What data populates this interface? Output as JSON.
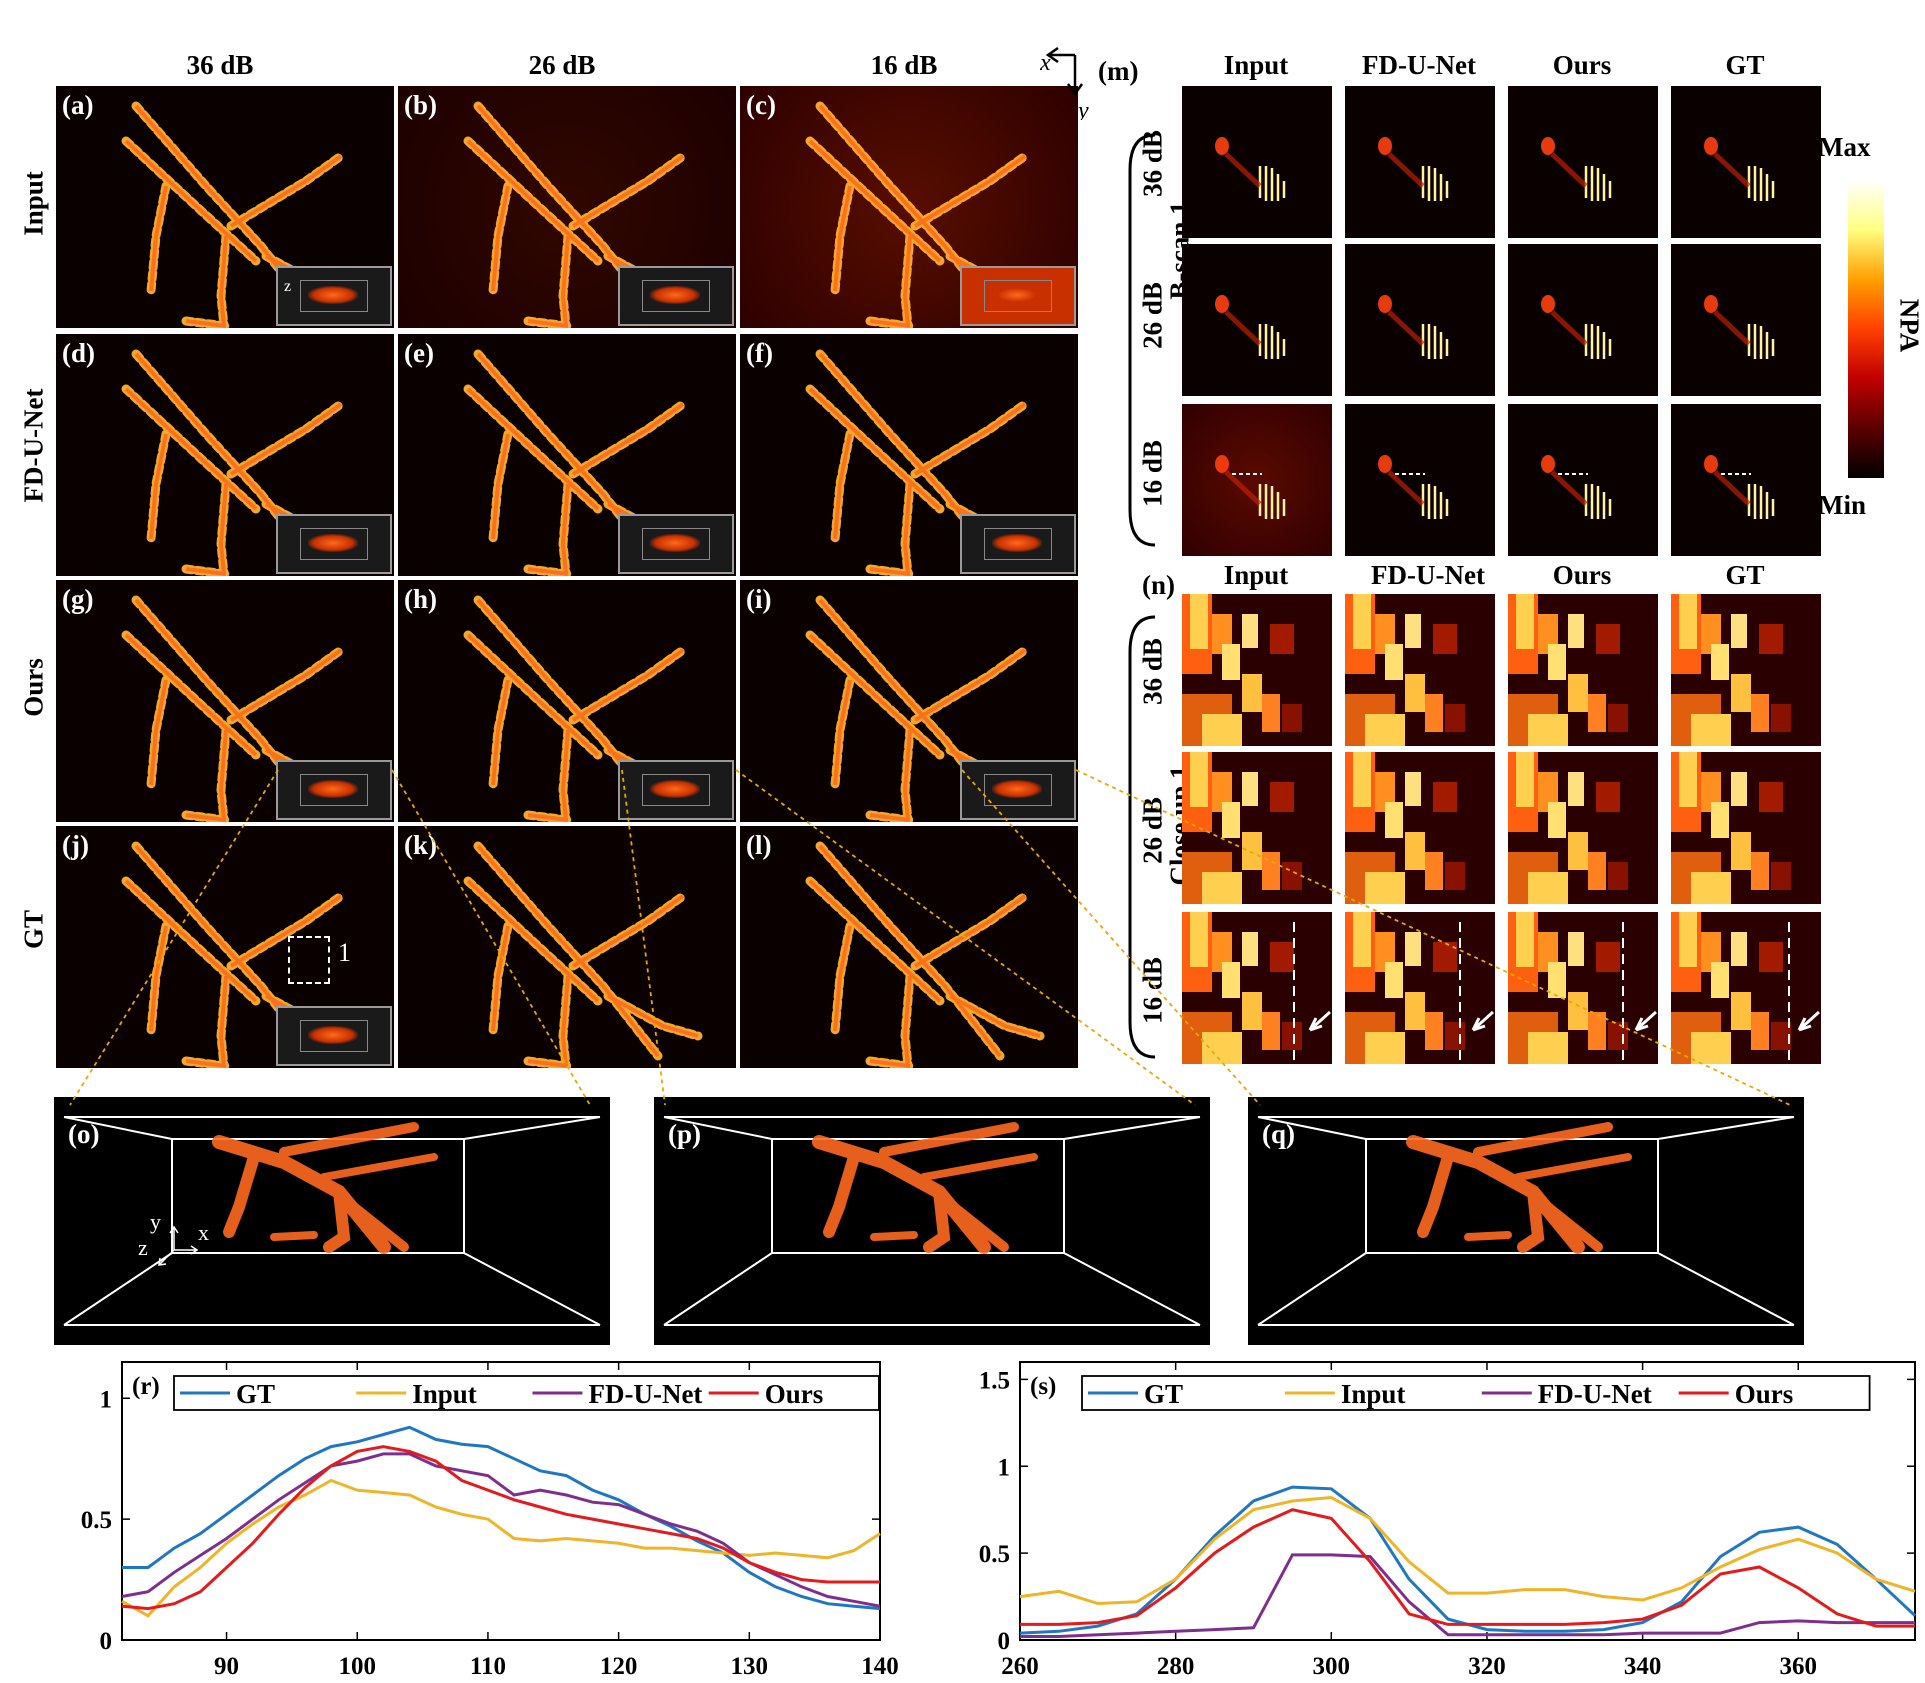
{
  "column_headers": [
    "36 dB",
    "26 dB",
    "16 dB"
  ],
  "row_headers": [
    "Input",
    "FD-U-Net",
    "Ours",
    "GT"
  ],
  "panel_tags": [
    "(a)",
    "(b)",
    "(c)",
    "(d)",
    "(e)",
    "(f)",
    "(g)",
    "(h)",
    "(i)",
    "(j)",
    "(k)",
    "(l)"
  ],
  "inset_axis_label": "z",
  "closeup_marker": "1",
  "axes_indicator": {
    "x": "x",
    "y": "y"
  },
  "bscan": {
    "tag": "(m)",
    "column_headers": [
      "Input",
      "FD-U-Net",
      "Ours",
      "GT"
    ],
    "row_headers": [
      "36 dB",
      "26 dB",
      "16 dB"
    ],
    "group_label": "B-scan 1"
  },
  "colorbar": {
    "max": "Max",
    "min": "Min",
    "label": "NPA",
    "colors": [
      "#000000",
      "#5a0000",
      "#c00000",
      "#ff4000",
      "#ffa000",
      "#ffff80",
      "#ffffff"
    ]
  },
  "closeup": {
    "tag": "(n)",
    "column_headers": [
      "Input",
      "FD-U-Net",
      "Ours",
      "GT"
    ],
    "row_headers": [
      "36 dB",
      "26 dB",
      "16 dB"
    ],
    "group_label": "Close up 1"
  },
  "volumes": [
    {
      "tag": "(o)",
      "axis_x": "x",
      "axis_y": "y",
      "axis_z": "z"
    },
    {
      "tag": "(p)"
    },
    {
      "tag": "(q)"
    }
  ],
  "chart_data": [
    {
      "type": "line",
      "tag": "(r)",
      "xlim": [
        82,
        140
      ],
      "ylim": [
        0,
        1.15
      ],
      "xticks": [
        90,
        100,
        110,
        120,
        130,
        140
      ],
      "yticks": [
        0,
        0.5,
        1
      ],
      "ytick_labels": [
        "0",
        "0.5",
        "1"
      ],
      "legend_position": "top",
      "x": [
        82,
        84,
        86,
        88,
        90,
        92,
        94,
        96,
        98,
        100,
        102,
        104,
        106,
        108,
        110,
        112,
        114,
        116,
        118,
        120,
        122,
        124,
        126,
        128,
        130,
        132,
        134,
        136,
        138,
        140
      ],
      "series": [
        {
          "name": "GT",
          "color": "#1f77c4",
          "values": [
            0.3,
            0.3,
            0.38,
            0.44,
            0.52,
            0.6,
            0.68,
            0.75,
            0.8,
            0.82,
            0.85,
            0.88,
            0.83,
            0.81,
            0.8,
            0.75,
            0.7,
            0.68,
            0.62,
            0.58,
            0.52,
            0.47,
            0.41,
            0.36,
            0.28,
            0.22,
            0.18,
            0.15,
            0.14,
            0.13
          ]
        },
        {
          "name": "Input",
          "color": "#f0b428",
          "values": [
            0.16,
            0.1,
            0.22,
            0.3,
            0.4,
            0.48,
            0.55,
            0.6,
            0.66,
            0.62,
            0.61,
            0.6,
            0.55,
            0.52,
            0.5,
            0.42,
            0.41,
            0.42,
            0.41,
            0.4,
            0.38,
            0.38,
            0.37,
            0.36,
            0.35,
            0.36,
            0.35,
            0.34,
            0.37,
            0.44
          ]
        },
        {
          "name": "FD-U-Net",
          "color": "#7e2f8e",
          "values": [
            0.18,
            0.2,
            0.28,
            0.35,
            0.42,
            0.5,
            0.58,
            0.65,
            0.72,
            0.74,
            0.77,
            0.77,
            0.72,
            0.7,
            0.68,
            0.6,
            0.62,
            0.6,
            0.57,
            0.56,
            0.52,
            0.48,
            0.45,
            0.4,
            0.32,
            0.27,
            0.22,
            0.18,
            0.16,
            0.14
          ]
        },
        {
          "name": "Ours",
          "color": "#e41a1c",
          "values": [
            0.14,
            0.13,
            0.15,
            0.2,
            0.3,
            0.4,
            0.52,
            0.63,
            0.72,
            0.78,
            0.8,
            0.78,
            0.74,
            0.66,
            0.62,
            0.58,
            0.55,
            0.52,
            0.5,
            0.48,
            0.46,
            0.44,
            0.42,
            0.38,
            0.32,
            0.28,
            0.25,
            0.24,
            0.24,
            0.24
          ]
        }
      ]
    },
    {
      "type": "line",
      "tag": "(s)",
      "xlim": [
        260,
        375
      ],
      "ylim": [
        0,
        1.6
      ],
      "xticks": [
        260,
        280,
        300,
        320,
        340,
        360
      ],
      "yticks": [
        0,
        0.5,
        1,
        1.5
      ],
      "ytick_labels": [
        "0",
        "0.5",
        "1",
        "1.5"
      ],
      "legend_position": "top",
      "x": [
        260,
        265,
        270,
        275,
        280,
        285,
        290,
        295,
        300,
        305,
        310,
        315,
        320,
        325,
        330,
        335,
        340,
        345,
        350,
        355,
        360,
        365,
        370,
        375
      ],
      "series": [
        {
          "name": "GT",
          "color": "#1f77c4",
          "values": [
            0.04,
            0.05,
            0.08,
            0.15,
            0.35,
            0.6,
            0.8,
            0.88,
            0.87,
            0.7,
            0.35,
            0.12,
            0.06,
            0.05,
            0.05,
            0.06,
            0.1,
            0.22,
            0.48,
            0.62,
            0.65,
            0.55,
            0.35,
            0.14
          ]
        },
        {
          "name": "Input",
          "color": "#f0b428",
          "values": [
            0.25,
            0.28,
            0.21,
            0.22,
            0.35,
            0.58,
            0.75,
            0.8,
            0.82,
            0.7,
            0.45,
            0.27,
            0.27,
            0.29,
            0.29,
            0.25,
            0.23,
            0.3,
            0.42,
            0.52,
            0.58,
            0.5,
            0.35,
            0.28
          ]
        },
        {
          "name": "FD-U-Net",
          "color": "#7e2f8e",
          "values": [
            0.02,
            0.02,
            0.03,
            0.04,
            0.05,
            0.06,
            0.07,
            0.49,
            0.49,
            0.48,
            0.22,
            0.03,
            0.03,
            0.03,
            0.03,
            0.03,
            0.04,
            0.04,
            0.04,
            0.1,
            0.11,
            0.1,
            0.1,
            0.1
          ]
        },
        {
          "name": "Ours",
          "color": "#e41a1c",
          "values": [
            0.09,
            0.09,
            0.1,
            0.14,
            0.3,
            0.5,
            0.65,
            0.75,
            0.7,
            0.45,
            0.15,
            0.09,
            0.09,
            0.09,
            0.09,
            0.1,
            0.12,
            0.2,
            0.38,
            0.42,
            0.3,
            0.15,
            0.08,
            0.08
          ]
        }
      ]
    }
  ]
}
